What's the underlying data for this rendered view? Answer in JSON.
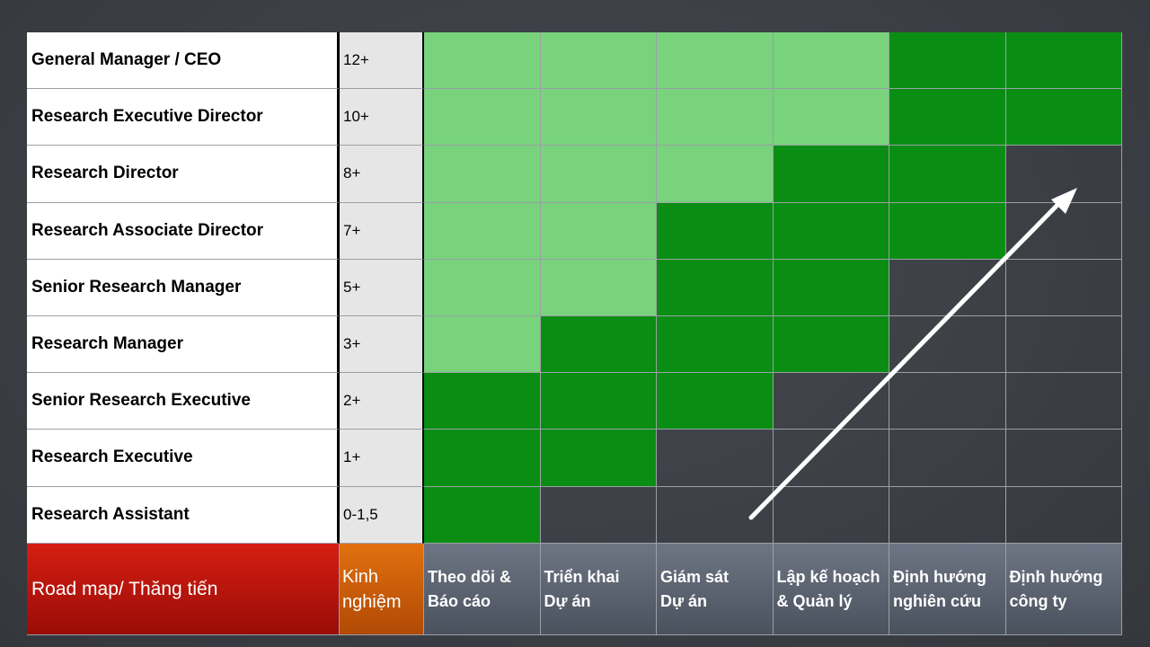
{
  "roles": [
    {
      "title": "General Manager / CEO",
      "experience": "12+",
      "levels": [
        "light",
        "light",
        "light",
        "light",
        "dark",
        "dark"
      ]
    },
    {
      "title": "Research Executive Director",
      "experience": "10+",
      "levels": [
        "light",
        "light",
        "light",
        "light",
        "dark",
        "dark"
      ]
    },
    {
      "title": "Research Director",
      "experience": "8+",
      "levels": [
        "light",
        "light",
        "light",
        "dark",
        "dark",
        "none"
      ]
    },
    {
      "title": "Research Associate Director",
      "experience": "7+",
      "levels": [
        "light",
        "light",
        "dark",
        "dark",
        "dark",
        "none"
      ]
    },
    {
      "title": "Senior Research Manager",
      "experience": "5+",
      "levels": [
        "light",
        "light",
        "dark",
        "dark",
        "none",
        "none"
      ]
    },
    {
      "title": "Research Manager",
      "experience": "3+",
      "levels": [
        "light",
        "dark",
        "dark",
        "dark",
        "none",
        "none"
      ]
    },
    {
      "title": "Senior Research Executive",
      "experience": "2+",
      "levels": [
        "dark",
        "dark",
        "dark",
        "none",
        "none",
        "none"
      ]
    },
    {
      "title": "Research Executive",
      "experience": "1+",
      "levels": [
        "dark",
        "dark",
        "none",
        "none",
        "none",
        "none"
      ]
    },
    {
      "title": "Research Assistant",
      "experience": "0-1,5",
      "levels": [
        "dark",
        "none",
        "none",
        "none",
        "none",
        "none"
      ]
    }
  ],
  "footer": {
    "roadmap_label": "Road map/ Thăng tiến",
    "experience_label": [
      "Kinh",
      "nghiệm"
    ],
    "columns": [
      [
        "Theo dõi &",
        "Báo cáo"
      ],
      [
        "Triển khai",
        "Dự án"
      ],
      [
        "Giám sát",
        "Dự án"
      ],
      [
        "Lập kế hoạch",
        "& Quản lý"
      ],
      [
        "Định hướng",
        "nghiên cứu"
      ],
      [
        "Định hướng",
        "công ty"
      ]
    ]
  },
  "colors": {
    "light": "#78d37c",
    "dark": "#0a8d13",
    "roadmap": "#c0160d",
    "experience": "#cf5f0a",
    "column_header": "#5e6673",
    "arrow": "#ffffff"
  },
  "arrow_icon": "diagonal-arrow-icon"
}
